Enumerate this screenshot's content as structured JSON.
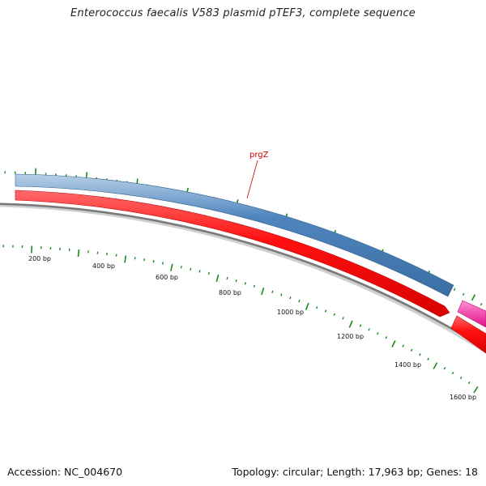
{
  "title": "Enterococcus faecalis V583 plasmid pTEF3, complete sequence",
  "footer": {
    "accession": "Accession: NC_004670",
    "info": "Topology: circular; Length: 17,963 bp; Genes: 18"
  },
  "map": {
    "colors": {
      "forward_gene": "#4a7fb5",
      "reverse_gene": "#ff1a1a",
      "pink_gene": "#ff2a9e",
      "backbone": "#808080",
      "ticks": "#1a8a1a",
      "gene_label": "#cc0000"
    },
    "gene_labels": [
      "prgZ"
    ],
    "ticks": [
      {
        "bp": 200,
        "label": "200 bp"
      },
      {
        "bp": 400,
        "label": "400 bp"
      },
      {
        "bp": 600,
        "label": "600 bp"
      },
      {
        "bp": 800,
        "label": "800 bp"
      },
      {
        "bp": 1000,
        "label": "1000 bp"
      },
      {
        "bp": 1200,
        "label": "1200 bp"
      },
      {
        "bp": 1400,
        "label": "1400 bp"
      },
      {
        "bp": 1600,
        "label": "1600 bp"
      }
    ]
  }
}
